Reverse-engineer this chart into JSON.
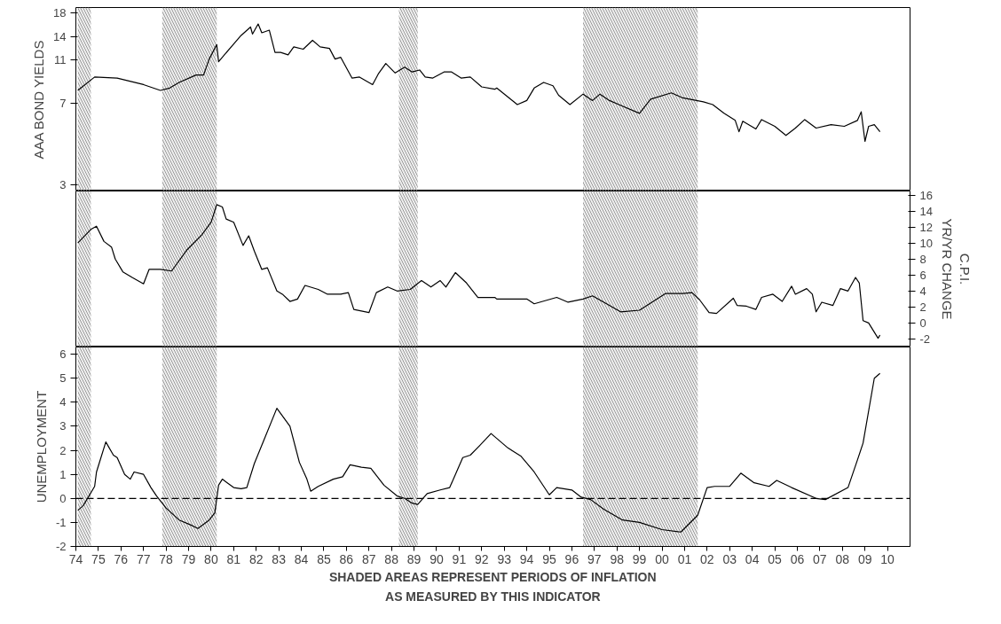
{
  "chart_data": [
    {
      "type": "line",
      "ylabel": "AAA BOND YIELDS",
      "log": true,
      "ylim": [
        2.8,
        19
      ],
      "yticks": [
        3,
        7,
        11,
        14,
        18
      ],
      "xlim": [
        "1974-01",
        "2011-01"
      ],
      "tick_labels": "y",
      "bands": [
        {
          "axis": "x",
          "from": "1974-02",
          "to": "1974-09",
          "color": "#999999"
        },
        {
          "axis": "x",
          "from": "1977-11",
          "to": "1980-04",
          "color": "#999999"
        },
        {
          "axis": "x",
          "from": "1988-05",
          "to": "1989-03",
          "color": "#999999"
        },
        {
          "axis": "x",
          "from": "1996-07",
          "to": "2001-08",
          "color": "#999999"
        }
      ],
      "series": [
        {
          "color": "#000000",
          "x": [
            "1974-02",
            "1974-11",
            "1975-11",
            "1977-01",
            "1977-10",
            "1978-03",
            "1978-08",
            "1979-05",
            "1979-09",
            "1979-12",
            "1980-04",
            "1980-05",
            "1981-01",
            "1981-05",
            "1981-10",
            "1981-11",
            "1982-02",
            "1982-04",
            "1982-08",
            "1982-11",
            "1983-02",
            "1983-06",
            "1983-09",
            "1984-02",
            "1984-07",
            "1984-11",
            "1985-04",
            "1985-07",
            "1985-10",
            "1986-04",
            "1986-08",
            "1987-03",
            "1987-06",
            "1987-10",
            "1988-03",
            "1988-08",
            "1988-12",
            "1989-04",
            "1989-07",
            "1989-11",
            "1990-05",
            "1990-09",
            "1991-02",
            "1991-07",
            "1992-01",
            "1992-08",
            "1992-09",
            "1993-08",
            "1994-01",
            "1994-05",
            "1994-10",
            "1995-03",
            "1995-06",
            "1995-12",
            "1996-07",
            "1996-12",
            "1997-04",
            "1997-09",
            "1998-02",
            "1999-01",
            "1999-07",
            "2000-06",
            "2000-12",
            "2001-11",
            "2002-04",
            "2002-10",
            "2003-04",
            "2003-06",
            "2003-08",
            "2004-03",
            "2004-06",
            "2005-01",
            "2005-07",
            "2005-12",
            "2006-05",
            "2006-11",
            "2007-07",
            "2008-02",
            "2008-09",
            "2008-11",
            "2009-01",
            "2009-03",
            "2009-06",
            "2009-09"
          ],
          "values": [
            8.0,
            9.2,
            9.1,
            8.5,
            8.0,
            8.2,
            8.7,
            9.4,
            9.4,
            11.1,
            12.9,
            10.8,
            13.0,
            14.2,
            15.5,
            14.4,
            16.0,
            14.6,
            15.0,
            11.9,
            11.9,
            11.6,
            12.6,
            12.3,
            13.5,
            12.6,
            12.4,
            11.1,
            11.3,
            9.1,
            9.2,
            8.5,
            9.5,
            10.6,
            9.6,
            10.2,
            9.7,
            9.9,
            9.2,
            9.1,
            9.7,
            9.7,
            9.1,
            9.2,
            8.3,
            8.1,
            8.2,
            6.9,
            7.2,
            8.2,
            8.7,
            8.4,
            7.6,
            6.9,
            7.7,
            7.2,
            7.7,
            7.2,
            6.9,
            6.3,
            7.3,
            7.8,
            7.4,
            7.1,
            6.9,
            6.3,
            5.85,
            5.2,
            5.8,
            5.35,
            5.9,
            5.5,
            5.0,
            5.4,
            5.9,
            5.4,
            5.6,
            5.5,
            5.85,
            6.4,
            4.7,
            5.5,
            5.6,
            5.2
          ]
        }
      ]
    },
    {
      "type": "line",
      "y2label": "C.P.I.\nYR/YR CHANGE",
      "y2lim": [
        -3,
        16.5
      ],
      "y2ticks": [
        -2,
        0,
        2,
        4,
        6,
        8,
        10,
        12,
        14,
        16
      ],
      "xlim": [
        "1974-01",
        "2011-01"
      ],
      "tick_labels": "y2",
      "bands": [
        {
          "axis": "x",
          "from": "1974-02",
          "to": "1974-09",
          "color": "#999999"
        },
        {
          "axis": "x",
          "from": "1977-11",
          "to": "1980-04",
          "color": "#999999"
        },
        {
          "axis": "x",
          "from": "1988-05",
          "to": "1989-03",
          "color": "#999999"
        },
        {
          "axis": "x",
          "from": "1996-07",
          "to": "2001-08",
          "color": "#999999"
        }
      ],
      "series": [
        {
          "color": "#000000",
          "axis": "y2",
          "x": [
            "1974-02",
            "1974-09",
            "1974-12",
            "1975-04",
            "1975-08",
            "1975-10",
            "1976-02",
            "1976-07",
            "1977-01",
            "1977-04",
            "1977-10",
            "1978-04",
            "1978-12",
            "1979-08",
            "1980-01",
            "1980-04",
            "1980-07",
            "1980-09",
            "1981-01",
            "1981-06",
            "1981-09",
            "1981-12",
            "1982-04",
            "1982-07",
            "1982-12",
            "1983-03",
            "1983-07",
            "1983-11",
            "1984-03",
            "1984-10",
            "1985-03",
            "1985-10",
            "1986-02",
            "1986-05",
            "1987-01",
            "1987-05",
            "1987-11",
            "1988-04",
            "1988-11",
            "1989-05",
            "1989-10",
            "1990-03",
            "1990-06",
            "1990-11",
            "1991-05",
            "1991-11",
            "1992-08",
            "1992-09",
            "1994-01",
            "1994-05",
            "1995-05",
            "1995-11",
            "1996-07",
            "1996-12",
            "1998-03",
            "1999-01",
            "2000-03",
            "2000-12",
            "2001-05",
            "2001-09",
            "2002-02",
            "2002-06",
            "2003-03",
            "2003-05",
            "2003-10",
            "2004-03",
            "2004-06",
            "2004-12",
            "2005-05",
            "2005-10",
            "2005-12",
            "2006-06",
            "2006-09",
            "2006-11",
            "2007-02",
            "2007-08",
            "2007-12",
            "2008-04",
            "2008-08",
            "2008-10",
            "2008-12",
            "2009-03",
            "2009-08",
            "2009-09"
          ],
          "values": [
            10.0,
            11.7,
            12.1,
            10.2,
            9.5,
            8.0,
            6.4,
            5.7,
            4.9,
            6.7,
            6.7,
            6.5,
            9.1,
            11.0,
            12.6,
            14.8,
            14.5,
            13.0,
            12.6,
            9.7,
            10.9,
            9.0,
            6.7,
            6.9,
            4.0,
            3.6,
            2.7,
            3.0,
            4.7,
            4.2,
            3.6,
            3.6,
            3.8,
            1.7,
            1.3,
            3.8,
            4.5,
            4.0,
            4.2,
            5.3,
            4.5,
            5.3,
            4.5,
            6.3,
            5.0,
            3.2,
            3.2,
            3.0,
            3.0,
            2.4,
            3.2,
            2.6,
            3.0,
            3.4,
            1.4,
            1.6,
            3.7,
            3.7,
            3.8,
            2.9,
            1.3,
            1.2,
            3.1,
            2.2,
            2.1,
            1.7,
            3.2,
            3.6,
            2.7,
            4.6,
            3.6,
            4.3,
            3.6,
            1.4,
            2.6,
            2.2,
            4.3,
            4.0,
            5.7,
            5.0,
            0.3,
            0.0,
            -1.9,
            -1.5
          ]
        }
      ]
    },
    {
      "type": "line",
      "ylabel": "UNEMPLOYMENT",
      "ylim": [
        -2,
        6.3
      ],
      "yticks": [
        -2,
        -1,
        0,
        1,
        2,
        3,
        4,
        5,
        6
      ],
      "xlim": [
        "1974-01",
        "2011-01"
      ],
      "xticks": [
        {
          "value": "1974",
          "label": "74"
        },
        {
          "value": "1975",
          "label": "75"
        },
        {
          "value": "1976",
          "label": "76"
        },
        {
          "value": "1977",
          "label": "77"
        },
        {
          "value": "1978",
          "label": "78"
        },
        {
          "value": "1979",
          "label": "79"
        },
        {
          "value": "1980",
          "label": "80"
        },
        {
          "value": "1981",
          "label": "81"
        },
        {
          "value": "1982",
          "label": "82"
        },
        {
          "value": "1983",
          "label": "83"
        },
        {
          "value": "1984",
          "label": "84"
        },
        {
          "value": "1985",
          "label": "85"
        },
        {
          "value": "1986",
          "label": "86"
        },
        {
          "value": "1987",
          "label": "87"
        },
        {
          "value": "1988",
          "label": "88"
        },
        {
          "value": "1989",
          "label": "89"
        },
        {
          "value": "1990",
          "label": "90"
        },
        {
          "value": "1991",
          "label": "91"
        },
        {
          "value": "1992",
          "label": "92"
        },
        {
          "value": "1993",
          "label": "93"
        },
        {
          "value": "1994",
          "label": "94"
        },
        {
          "value": "1995",
          "label": "95"
        },
        {
          "value": "1996",
          "label": "96"
        },
        {
          "value": "1997",
          "label": "97"
        },
        {
          "value": "1998",
          "label": "98"
        },
        {
          "value": "1999",
          "label": "99"
        },
        {
          "value": "2000",
          "label": "00"
        },
        {
          "value": "2001",
          "label": "01"
        },
        {
          "value": "2002",
          "label": "02"
        },
        {
          "value": "2003",
          "label": "03"
        },
        {
          "value": "2004",
          "label": "04"
        },
        {
          "value": "2005",
          "label": "05"
        },
        {
          "value": "2006",
          "label": "06"
        },
        {
          "value": "2007",
          "label": "07"
        },
        {
          "value": "2008",
          "label": "08"
        },
        {
          "value": "2009",
          "label": "09"
        },
        {
          "value": "2010",
          "label": "10"
        }
      ],
      "ref_lines": [
        {
          "axis": "y",
          "value": 0,
          "line_style": "dashed",
          "color": "#000000"
        }
      ],
      "annotations": [
        "SHADED AREAS REPRESENT PERIODS OF INFLATION",
        "AS MEASURED BY THIS INDICATOR"
      ],
      "bands": [
        {
          "axis": "x",
          "from": "1974-02",
          "to": "1974-09",
          "color": "#999999"
        },
        {
          "axis": "x",
          "from": "1977-11",
          "to": "1980-04",
          "color": "#999999"
        },
        {
          "axis": "x",
          "from": "1988-05",
          "to": "1989-03",
          "color": "#999999"
        },
        {
          "axis": "x",
          "from": "1996-07",
          "to": "2001-08",
          "color": "#999999"
        }
      ],
      "series": [
        {
          "color": "#000000",
          "x": [
            "1974-02",
            "1974-05",
            "1974-11",
            "1974-12",
            "1975-05",
            "1975-09",
            "1975-11",
            "1976-03",
            "1976-06",
            "1976-08",
            "1977-01",
            "1977-05",
            "1977-08",
            "1978-01",
            "1978-08",
            "1979-02",
            "1979-06",
            "1979-12",
            "1980-03",
            "1980-05",
            "1980-07",
            "1981-01",
            "1981-05",
            "1981-08",
            "1981-12",
            "1982-05",
            "1982-12",
            "1983-07",
            "1983-12",
            "1984-04",
            "1984-06",
            "1984-10",
            "1985-06",
            "1985-11",
            "1986-03",
            "1986-09",
            "1987-02",
            "1987-09",
            "1988-04",
            "1988-08",
            "1988-12",
            "1989-03",
            "1989-08",
            "1990-03",
            "1990-08",
            "1991-03",
            "1991-07",
            "1991-12",
            "1992-06",
            "1993-03",
            "1993-10",
            "1994-05",
            "1995-01",
            "1995-05",
            "1996-01",
            "1996-06",
            "1996-11",
            "1997-06",
            "1998-04",
            "1999-01",
            "2000-01",
            "2000-11",
            "2001-08",
            "2002-01",
            "2002-05",
            "2003-01",
            "2003-07",
            "2004-02",
            "2004-10",
            "2005-02",
            "2005-10",
            "2006-11",
            "2007-04",
            "2008-04",
            "2008-09",
            "2008-12",
            "2009-06",
            "2009-09"
          ],
          "values": [
            -0.5,
            -0.3,
            0.5,
            1.1,
            2.35,
            1.8,
            1.7,
            1.0,
            0.8,
            1.1,
            1.0,
            0.45,
            0.1,
            -0.4,
            -0.9,
            -1.1,
            -1.25,
            -0.9,
            -0.6,
            0.55,
            0.8,
            0.45,
            0.4,
            0.45,
            1.45,
            2.4,
            3.75,
            3.0,
            1.5,
            0.8,
            0.3,
            0.5,
            0.8,
            0.9,
            1.4,
            1.3,
            1.25,
            0.55,
            0.1,
            0.0,
            -0.2,
            -0.25,
            0.2,
            0.35,
            0.45,
            1.7,
            1.8,
            2.2,
            2.7,
            2.1,
            1.75,
            1.1,
            0.15,
            0.45,
            0.35,
            0.05,
            -0.05,
            -0.45,
            -0.9,
            -1.0,
            -1.3,
            -1.4,
            -0.7,
            0.45,
            0.5,
            0.5,
            1.05,
            0.65,
            0.5,
            0.75,
            0.45,
            0.0,
            -0.05,
            0.45,
            1.6,
            2.3,
            5.0,
            5.2
          ]
        }
      ]
    }
  ]
}
